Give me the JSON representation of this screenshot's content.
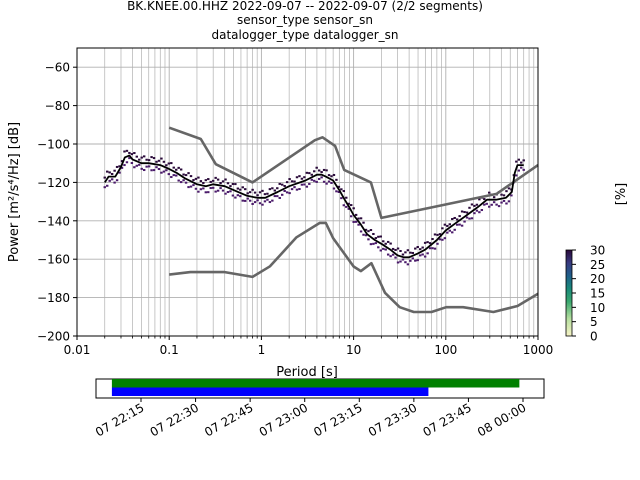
{
  "title": {
    "line1": "BK.KNEE.00.HHZ   2022-09-07 -- 2022-09-07  (2/2 segments)",
    "line2": "sensor_type  sensor_sn",
    "line3": "datalogger_type  datalogger_sn"
  },
  "chart_data": [
    {
      "type": "line",
      "subtype": "probabilistic-power-spectral-density",
      "xlabel": "Period [s]",
      "ylabel": "Power [m²/s⁴/Hz] [dB]",
      "xscale": "log",
      "xlim": [
        0.01,
        1000
      ],
      "ylim": [
        -200,
        -50
      ],
      "grid": true,
      "x_ticks": [
        0.01,
        0.1,
        1,
        10,
        100,
        1000
      ],
      "x_tick_labels": [
        "0.01",
        "0.1",
        "1",
        "10",
        "100",
        "1000"
      ],
      "y_ticks": [
        -200,
        -180,
        -160,
        -140,
        -120,
        -100,
        -80,
        -60
      ],
      "y_tick_labels": [
        "−200",
        "−180",
        "−160",
        "−140",
        "−120",
        "−100",
        "−80",
        "−60"
      ],
      "colors": {
        "noise_models": "#666666",
        "mean": "#000000",
        "histogram": "#2a0a3a",
        "grid": "#b0b0b0"
      },
      "series": [
        {
          "role": "new-high-noise-model",
          "x": [
            0.1,
            0.22,
            0.32,
            0.8,
            3.8,
            4.6,
            6.3,
            7.9,
            15.4,
            20,
            354.8,
            1000
          ],
          "y": [
            -91.5,
            -97.4,
            -110.5,
            -120,
            -98,
            -96.5,
            -101,
            -113.5,
            -120,
            -138.5,
            -126,
            -111
          ]
        },
        {
          "role": "new-low-noise-model",
          "x": [
            0.1,
            0.17,
            0.4,
            0.8,
            1.24,
            2.4,
            4.3,
            5,
            6,
            10,
            12,
            15.6,
            21.9,
            31.6,
            45,
            70,
            101,
            154,
            328,
            600,
            1000
          ],
          "y": [
            -168,
            -166.7,
            -166.7,
            -169.2,
            -163.7,
            -148.6,
            -141.1,
            -141.1,
            -149,
            -163.8,
            -166.2,
            -162.1,
            -177.5,
            -185,
            -187.5,
            -187.5,
            -185,
            -185,
            -187.5,
            -184.4,
            -178
          ]
        },
        {
          "role": "mean",
          "x": [
            0.02,
            0.022,
            0.026,
            0.03,
            0.033,
            0.037,
            0.04,
            0.05,
            0.06,
            0.08,
            0.1,
            0.12,
            0.15,
            0.2,
            0.25,
            0.3,
            0.4,
            0.5,
            0.7,
            0.9,
            1.1,
            1.5,
            2,
            3,
            4,
            4.5,
            5,
            6,
            7,
            8,
            9,
            10,
            12,
            14,
            17,
            20,
            25,
            30,
            35,
            40,
            50,
            60,
            80,
            100,
            130,
            170,
            220,
            280,
            350,
            450,
            520,
            560,
            600,
            700
          ],
          "y": [
            -120,
            -117,
            -117,
            -112,
            -107,
            -106,
            -108,
            -110,
            -110,
            -111,
            -113,
            -115,
            -118,
            -121,
            -122,
            -121,
            -122,
            -124,
            -127,
            -128,
            -128,
            -125,
            -122,
            -119,
            -116,
            -116,
            -117,
            -119,
            -124,
            -129,
            -133,
            -137,
            -142,
            -147,
            -150,
            -152,
            -155,
            -158,
            -159,
            -159,
            -157,
            -155,
            -150,
            -145,
            -141,
            -137,
            -133,
            -129,
            -129,
            -128,
            -125,
            -115,
            -111,
            -111
          ]
        }
      ],
      "colorbar": {
        "label": "[%]",
        "range": [
          0,
          30
        ],
        "ticks": [
          0,
          5,
          10,
          15,
          20,
          25,
          30
        ]
      }
    },
    {
      "type": "timeline",
      "x_tick_labels": [
        "07 22:15",
        "07 22:30",
        "07 22:45",
        "07 23:00",
        "07 23:15",
        "07 23:30",
        "07 23:45",
        "08 00:00"
      ],
      "bars": [
        {
          "role": "data-availability",
          "color": "#008000",
          "start": "07 22:07",
          "end": "07 23:59"
        },
        {
          "role": "used-segments",
          "color": "#0000ff",
          "start": "07 22:07",
          "end": "07 23:34"
        }
      ]
    }
  ]
}
